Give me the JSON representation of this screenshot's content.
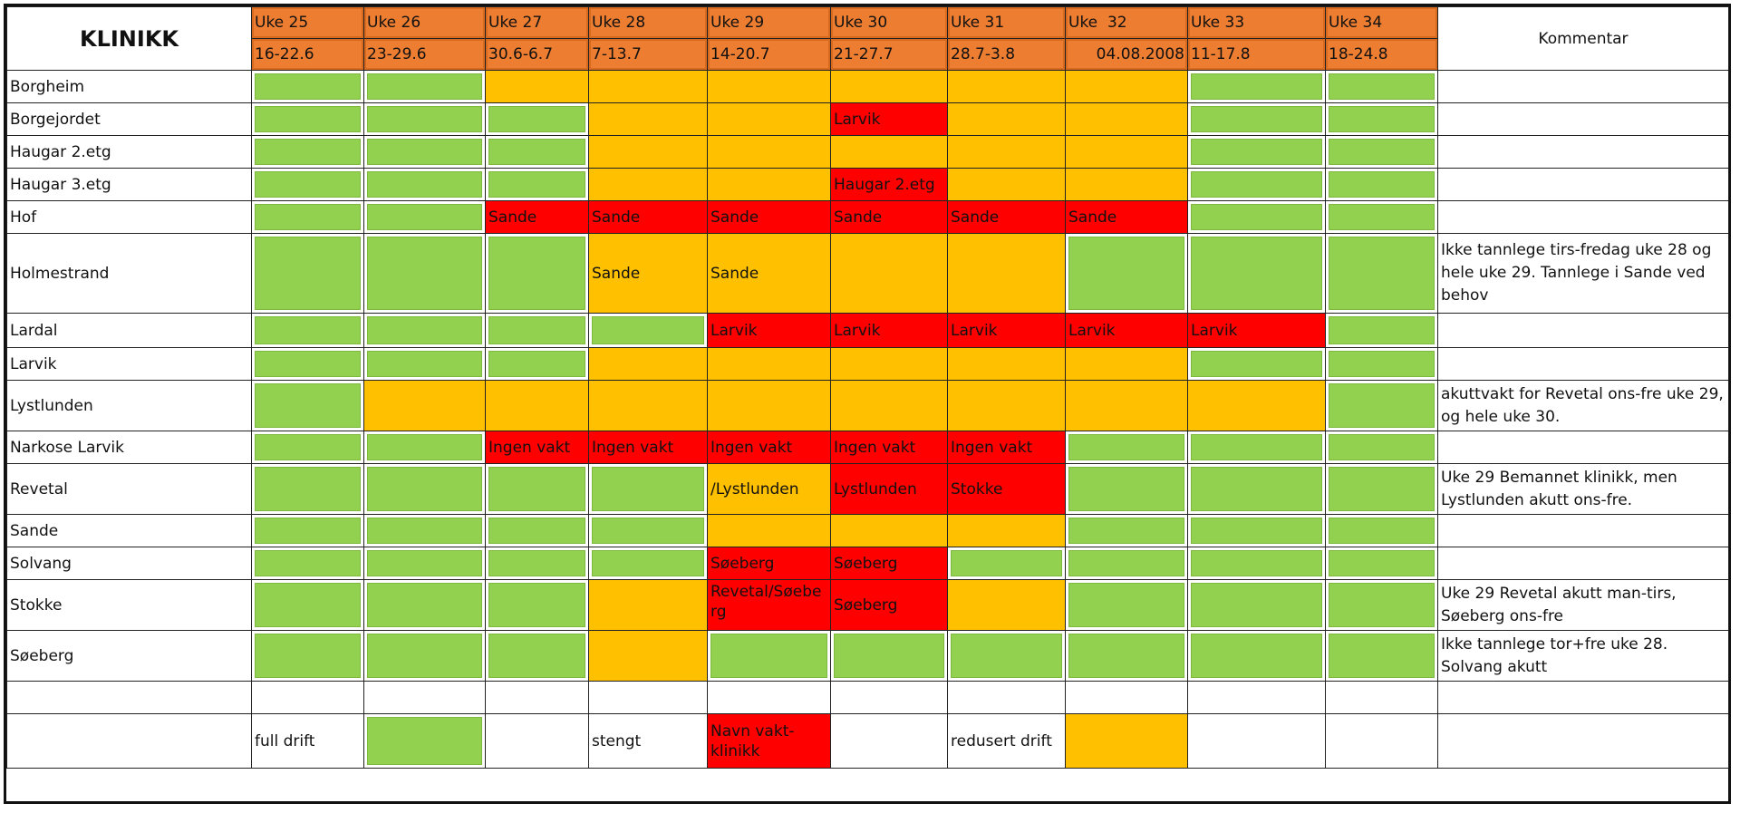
{
  "header": {
    "title": "KLINIKK",
    "comment_header": "Kommentar",
    "weeks": [
      {
        "label": "Uke 25",
        "dates": "16-22.6"
      },
      {
        "label": "Uke 26",
        "dates": "23-29.6"
      },
      {
        "label": "Uke 27",
        "dates": "30.6-6.7"
      },
      {
        "label": "Uke 28",
        "dates": "7-13.7"
      },
      {
        "label": "Uke 29",
        "dates": "14-20.7"
      },
      {
        "label": "Uke 30",
        "dates": "21-27.7"
      },
      {
        "label": "Uke 31",
        "dates": "28.7-3.8"
      },
      {
        "label": "Uke  32",
        "dates": "04.08.2008"
      },
      {
        "label": "Uke 33",
        "dates": "11-17.8"
      },
      {
        "label": "Uke 34",
        "dates": "18-24.8"
      }
    ]
  },
  "status_colors": {
    "full": "#92d050",
    "redusert": "#ffc000",
    "stengt": "#ff0000"
  },
  "rows": [
    {
      "clinic": "Borgheim",
      "cells": [
        {
          "s": "G",
          "t": ""
        },
        {
          "s": "G",
          "t": ""
        },
        {
          "s": "Y",
          "t": ""
        },
        {
          "s": "Y",
          "t": ""
        },
        {
          "s": "Y",
          "t": ""
        },
        {
          "s": "Y",
          "t": ""
        },
        {
          "s": "Y",
          "t": ""
        },
        {
          "s": "Y",
          "t": ""
        },
        {
          "s": "G",
          "t": ""
        },
        {
          "s": "G",
          "t": ""
        }
      ],
      "comment": ""
    },
    {
      "clinic": "Borgejordet",
      "cells": [
        {
          "s": "G",
          "t": ""
        },
        {
          "s": "G",
          "t": ""
        },
        {
          "s": "G",
          "t": ""
        },
        {
          "s": "Y",
          "t": ""
        },
        {
          "s": "Y",
          "t": ""
        },
        {
          "s": "R",
          "t": "Larvik"
        },
        {
          "s": "Y",
          "t": ""
        },
        {
          "s": "Y",
          "t": ""
        },
        {
          "s": "G",
          "t": ""
        },
        {
          "s": "G",
          "t": ""
        }
      ],
      "comment": ""
    },
    {
      "clinic": "Haugar 2.etg",
      "cells": [
        {
          "s": "G",
          "t": ""
        },
        {
          "s": "G",
          "t": ""
        },
        {
          "s": "G",
          "t": ""
        },
        {
          "s": "Y",
          "t": ""
        },
        {
          "s": "Y",
          "t": ""
        },
        {
          "s": "Y",
          "t": ""
        },
        {
          "s": "Y",
          "t": ""
        },
        {
          "s": "Y",
          "t": ""
        },
        {
          "s": "G",
          "t": ""
        },
        {
          "s": "G",
          "t": ""
        }
      ],
      "comment": ""
    },
    {
      "clinic": "Haugar 3.etg",
      "cells": [
        {
          "s": "G",
          "t": ""
        },
        {
          "s": "G",
          "t": ""
        },
        {
          "s": "G",
          "t": ""
        },
        {
          "s": "Y",
          "t": ""
        },
        {
          "s": "Y",
          "t": ""
        },
        {
          "s": "R",
          "t": "Haugar 2.etg"
        },
        {
          "s": "Y",
          "t": ""
        },
        {
          "s": "Y",
          "t": ""
        },
        {
          "s": "G",
          "t": ""
        },
        {
          "s": "G",
          "t": ""
        }
      ],
      "comment": ""
    },
    {
      "clinic": "Hof",
      "cells": [
        {
          "s": "G",
          "t": ""
        },
        {
          "s": "G",
          "t": ""
        },
        {
          "s": "R",
          "t": "Sande"
        },
        {
          "s": "R",
          "t": "Sande"
        },
        {
          "s": "R",
          "t": "Sande"
        },
        {
          "s": "R",
          "t": "Sande"
        },
        {
          "s": "R",
          "t": "Sande"
        },
        {
          "s": "R",
          "t": "Sande"
        },
        {
          "s": "G",
          "t": ""
        },
        {
          "s": "G",
          "t": ""
        }
      ],
      "comment": ""
    },
    {
      "clinic": "Holmestrand",
      "cells": [
        {
          "s": "G",
          "t": ""
        },
        {
          "s": "G",
          "t": ""
        },
        {
          "s": "G",
          "t": ""
        },
        {
          "s": "Y",
          "t": "Sande"
        },
        {
          "s": "Y",
          "t": "Sande"
        },
        {
          "s": "Y",
          "t": ""
        },
        {
          "s": "Y",
          "t": ""
        },
        {
          "s": "G",
          "t": ""
        },
        {
          "s": "G",
          "t": ""
        },
        {
          "s": "G",
          "t": ""
        }
      ],
      "comment": "Ikke tannlege tirs-fredag uke 28 og hele uke 29. Tannlege i Sande ved behov"
    },
    {
      "clinic": "Lardal",
      "cells": [
        {
          "s": "G",
          "t": ""
        },
        {
          "s": "G",
          "t": ""
        },
        {
          "s": "G",
          "t": ""
        },
        {
          "s": "G",
          "t": ""
        },
        {
          "s": "R",
          "t": "Larvik"
        },
        {
          "s": "R",
          "t": "Larvik"
        },
        {
          "s": "R",
          "t": "Larvik"
        },
        {
          "s": "R",
          "t": "Larvik"
        },
        {
          "s": "R",
          "t": "Larvik"
        },
        {
          "s": "G",
          "t": ""
        }
      ],
      "comment": ""
    },
    {
      "clinic": "Larvik",
      "cells": [
        {
          "s": "G",
          "t": ""
        },
        {
          "s": "G",
          "t": ""
        },
        {
          "s": "G",
          "t": ""
        },
        {
          "s": "Y",
          "t": ""
        },
        {
          "s": "Y",
          "t": ""
        },
        {
          "s": "Y",
          "t": ""
        },
        {
          "s": "Y",
          "t": ""
        },
        {
          "s": "Y",
          "t": ""
        },
        {
          "s": "G",
          "t": ""
        },
        {
          "s": "G",
          "t": ""
        }
      ],
      "comment": ""
    },
    {
      "clinic": "Lystlunden",
      "cells": [
        {
          "s": "G",
          "t": ""
        },
        {
          "s": "Y",
          "t": ""
        },
        {
          "s": "Y",
          "t": ""
        },
        {
          "s": "Y",
          "t": ""
        },
        {
          "s": "Y",
          "t": ""
        },
        {
          "s": "Y",
          "t": ""
        },
        {
          "s": "Y",
          "t": ""
        },
        {
          "s": "Y",
          "t": ""
        },
        {
          "s": "Y",
          "t": ""
        },
        {
          "s": "G",
          "t": ""
        }
      ],
      "comment": "akuttvakt for Revetal ons-fre uke 29, og hele uke 30."
    },
    {
      "clinic": "Narkose Larvik",
      "cells": [
        {
          "s": "G",
          "t": ""
        },
        {
          "s": "G",
          "t": ""
        },
        {
          "s": "R",
          "t": "Ingen vakt"
        },
        {
          "s": "R",
          "t": "Ingen vakt"
        },
        {
          "s": "R",
          "t": "Ingen vakt"
        },
        {
          "s": "R",
          "t": "Ingen vakt"
        },
        {
          "s": "R",
          "t": "Ingen vakt"
        },
        {
          "s": "G",
          "t": ""
        },
        {
          "s": "G",
          "t": ""
        },
        {
          "s": "G",
          "t": ""
        }
      ],
      "comment": ""
    },
    {
      "clinic": "Revetal",
      "cells": [
        {
          "s": "G",
          "t": ""
        },
        {
          "s": "G",
          "t": ""
        },
        {
          "s": "G",
          "t": ""
        },
        {
          "s": "G",
          "t": ""
        },
        {
          "s": "Y",
          "t": "/Lystlunden"
        },
        {
          "s": "R",
          "t": "Lystlunden"
        },
        {
          "s": "R",
          "t": "Stokke"
        },
        {
          "s": "G",
          "t": ""
        },
        {
          "s": "G",
          "t": ""
        },
        {
          "s": "G",
          "t": ""
        }
      ],
      "comment": "Uke 29 Bemannet klinikk, men Lystlunden akutt ons-fre."
    },
    {
      "clinic": "Sande",
      "cells": [
        {
          "s": "G",
          "t": ""
        },
        {
          "s": "G",
          "t": ""
        },
        {
          "s": "G",
          "t": ""
        },
        {
          "s": "G",
          "t": ""
        },
        {
          "s": "Y",
          "t": ""
        },
        {
          "s": "Y",
          "t": ""
        },
        {
          "s": "Y",
          "t": ""
        },
        {
          "s": "G",
          "t": ""
        },
        {
          "s": "G",
          "t": ""
        },
        {
          "s": "G",
          "t": ""
        }
      ],
      "comment": ""
    },
    {
      "clinic": "Solvang",
      "cells": [
        {
          "s": "G",
          "t": ""
        },
        {
          "s": "G",
          "t": ""
        },
        {
          "s": "G",
          "t": ""
        },
        {
          "s": "G",
          "t": ""
        },
        {
          "s": "R",
          "t": "Søeberg"
        },
        {
          "s": "R",
          "t": "Søeberg"
        },
        {
          "s": "G",
          "t": ""
        },
        {
          "s": "G",
          "t": ""
        },
        {
          "s": "G",
          "t": ""
        },
        {
          "s": "G",
          "t": ""
        }
      ],
      "comment": ""
    },
    {
      "clinic": "Stokke",
      "cells": [
        {
          "s": "G",
          "t": ""
        },
        {
          "s": "G",
          "t": ""
        },
        {
          "s": "G",
          "t": ""
        },
        {
          "s": "Y",
          "t": ""
        },
        {
          "s": "R",
          "t": "Revetal/Søeberg"
        },
        {
          "s": "R",
          "t": "Søeberg"
        },
        {
          "s": "Y",
          "t": ""
        },
        {
          "s": "G",
          "t": ""
        },
        {
          "s": "G",
          "t": ""
        },
        {
          "s": "G",
          "t": ""
        }
      ],
      "comment": "Uke 29 Revetal akutt man-tirs, Søeberg ons-fre"
    },
    {
      "clinic": "Søeberg",
      "cells": [
        {
          "s": "G",
          "t": ""
        },
        {
          "s": "G",
          "t": ""
        },
        {
          "s": "G",
          "t": ""
        },
        {
          "s": "Y",
          "t": ""
        },
        {
          "s": "G",
          "t": ""
        },
        {
          "s": "G",
          "t": ""
        },
        {
          "s": "G",
          "t": ""
        },
        {
          "s": "G",
          "t": ""
        },
        {
          "s": "G",
          "t": ""
        },
        {
          "s": "G",
          "t": ""
        }
      ],
      "comment": "Ikke tannlege tor+fre uke 28. Solvang akutt"
    }
  ],
  "legend": {
    "full": "full drift",
    "stengt": "stengt",
    "stengt_swatch": "Navn vakt-klinikk",
    "redusert": "redusert drift"
  }
}
